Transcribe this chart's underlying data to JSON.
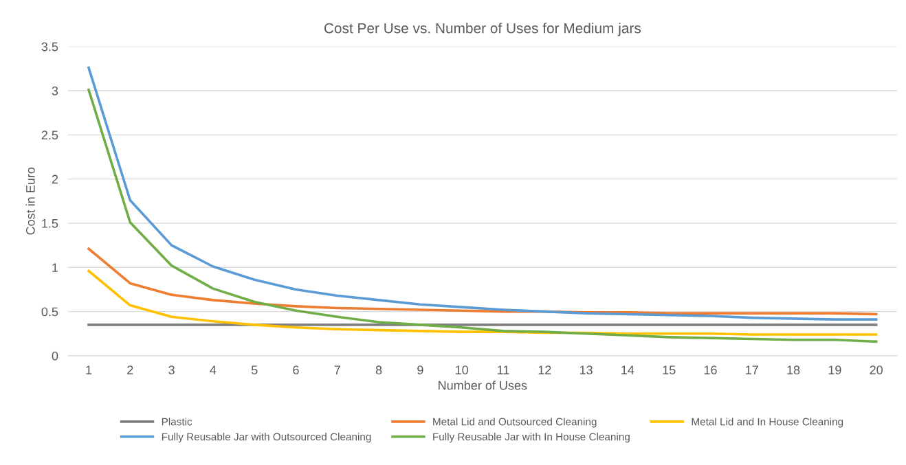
{
  "chart_data": {
    "type": "line",
    "title": "Cost Per Use vs. Number of Uses for Medium jars",
    "xlabel": "Number of Uses",
    "ylabel": "Cost in Euro",
    "categories": [
      "1",
      "2",
      "3",
      "4",
      "5",
      "6",
      "7",
      "8",
      "9",
      "10",
      "11",
      "12",
      "13",
      "14",
      "15",
      "16",
      "17",
      "18",
      "19",
      "20"
    ],
    "ylim": [
      0,
      3.5
    ],
    "yticks": [
      0,
      0.5,
      1,
      1.5,
      2,
      2.5,
      3,
      3.5
    ],
    "grid": "y",
    "legend": "bottom",
    "marker": "none",
    "line_style": "solid",
    "series": [
      {
        "name": "Plastic",
        "color": "#7f7f7f",
        "values": [
          0.35,
          0.35,
          0.35,
          0.35,
          0.35,
          0.35,
          0.35,
          0.35,
          0.35,
          0.35,
          0.35,
          0.35,
          0.35,
          0.35,
          0.35,
          0.35,
          0.35,
          0.35,
          0.35,
          0.35
        ]
      },
      {
        "name": "Metal Lid and Outsourced Cleaning",
        "color": "#ed7d31",
        "values": [
          1.21,
          0.82,
          0.69,
          0.63,
          0.59,
          0.56,
          0.54,
          0.53,
          0.52,
          0.51,
          0.5,
          0.5,
          0.49,
          0.49,
          0.48,
          0.48,
          0.48,
          0.48,
          0.48,
          0.47
        ]
      },
      {
        "name": "Metal Lid and In House Cleaning",
        "color": "#ffc000",
        "values": [
          0.96,
          0.57,
          0.44,
          0.39,
          0.35,
          0.32,
          0.3,
          0.29,
          0.28,
          0.27,
          0.27,
          0.26,
          0.26,
          0.25,
          0.25,
          0.25,
          0.24,
          0.24,
          0.24,
          0.24
        ]
      },
      {
        "name": "Fully Reusable Jar with Outsourced Cleaning",
        "color": "#5b9bd5",
        "values": [
          3.26,
          1.76,
          1.25,
          1.01,
          0.86,
          0.75,
          0.68,
          0.63,
          0.58,
          0.55,
          0.52,
          0.5,
          0.48,
          0.47,
          0.46,
          0.45,
          0.43,
          0.42,
          0.41,
          0.41
        ]
      },
      {
        "name": "Fully Reusable Jar with In House Cleaning",
        "color": "#70ad47",
        "values": [
          3.01,
          1.51,
          1.02,
          0.76,
          0.61,
          0.51,
          0.44,
          0.38,
          0.35,
          0.32,
          0.28,
          0.27,
          0.25,
          0.23,
          0.21,
          0.2,
          0.19,
          0.18,
          0.18,
          0.16
        ]
      }
    ]
  }
}
